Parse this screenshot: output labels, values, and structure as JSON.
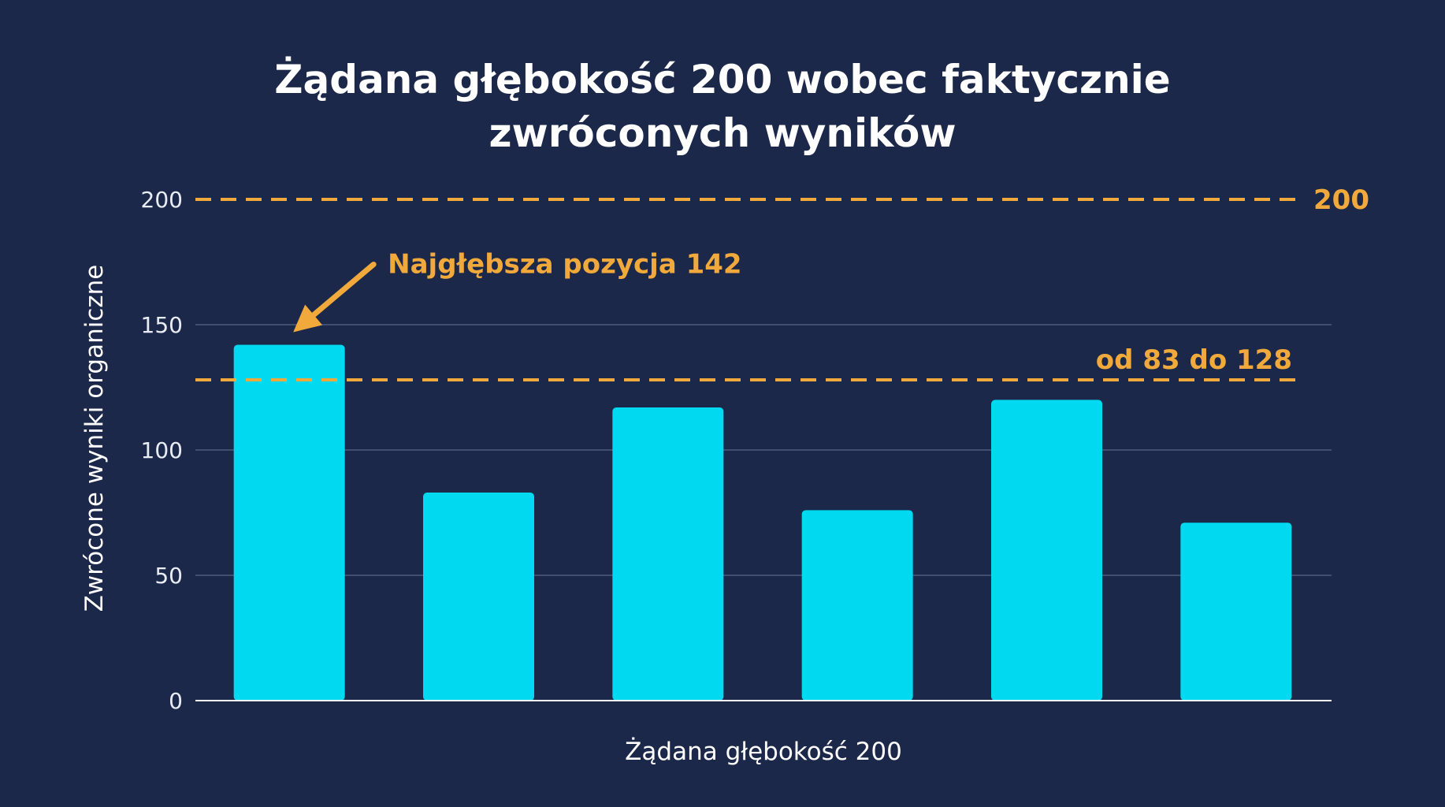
{
  "colors": {
    "background": "#1b2849",
    "bar": "#00d9ef",
    "accent": "#f0a93a",
    "grid": "#4d5a7c",
    "axis": "#ffffff",
    "text": "#ffffff"
  },
  "chart_data": {
    "type": "bar",
    "title_lines": [
      "Żądana głębokość 200 wobec faktycznie",
      "zwróconych wyników"
    ],
    "xlabel": "Żądana głębokość 200",
    "ylabel": "Zwrócone wyniki organiczne",
    "ylim": [
      0,
      200
    ],
    "yticks": [
      0,
      50,
      100,
      150,
      200
    ],
    "grid": true,
    "categories": [
      "",
      "",
      "",
      "",
      "",
      ""
    ],
    "values": [
      142,
      83,
      117,
      76,
      120,
      71
    ],
    "reference_lines": [
      {
        "value": 200,
        "label": "200",
        "style": "dashed"
      },
      {
        "value": 128,
        "label": "od 83 do 128",
        "style": "dashed"
      }
    ],
    "annotations": [
      {
        "text": "Najgłębsza pozycja 142",
        "target_index": 0,
        "arrow": true
      }
    ]
  }
}
